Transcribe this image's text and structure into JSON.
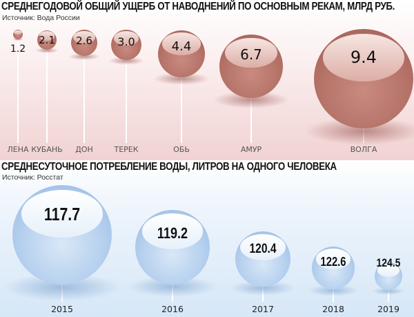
{
  "top_chart": {
    "title": "СРЕДНЕГОДОВОЙ ОБЩИЙ УЩЕРБ ОТ НАВОДНЕНИЙ ПО ОСНОВНЫМ РЕКАМ, МЛРД РУБ.",
    "source": "Источник: Вода России",
    "items": [
      {
        "label": "ЛЕНА",
        "value": "1.2"
      },
      {
        "label": "КУБАНЬ",
        "value": "2.1"
      },
      {
        "label": "ДОН",
        "value": "2.6"
      },
      {
        "label": "ТЕРЕК",
        "value": "3.0"
      },
      {
        "label": "ОБЬ",
        "value": "4.4"
      },
      {
        "label": "АМУР",
        "value": "6.7"
      },
      {
        "label": "ВОЛГА",
        "value": "9.4"
      }
    ]
  },
  "bottom_chart": {
    "title": "СРЕДНЕСУТОЧНОЕ ПОТРЕБЛЕНИЕ ВОДЫ, ЛИТРОВ НА ОДНОГО ЧЕЛОВЕКА",
    "source": "Источник: Росстат",
    "items": [
      {
        "label": "2015",
        "value": "117.7"
      },
      {
        "label": "2016",
        "value": "119.2"
      },
      {
        "label": "2017",
        "value": "120.4"
      },
      {
        "label": "2018",
        "value": "122.6"
      },
      {
        "label": "2019",
        "value": "124.5"
      }
    ]
  },
  "colors": {
    "top_sphere": "#b57368",
    "top_background": "#f1d2d2",
    "bottom_sphere": "#b4cfee",
    "bottom_background": "#d6e7f7"
  },
  "chart_data": [
    {
      "type": "bubble",
      "title": "СРЕДНЕГОДОВОЙ ОБЩИЙ УЩЕРБ ОТ НАВОДНЕНИЙ ПО ОСНОВНЫМ РЕКАМ, МЛРД РУБ.",
      "subtitle": "Источник: Вода России",
      "categories": [
        "ЛЕНА",
        "КУБАНЬ",
        "ДОН",
        "ТЕРЕК",
        "ОБЬ",
        "АМУР",
        "ВОЛГА"
      ],
      "values": [
        1.2,
        2.1,
        2.6,
        3.0,
        4.4,
        6.7,
        9.4
      ],
      "xlabel": "",
      "ylabel": "млрд руб.",
      "grid": false,
      "legend": "none"
    },
    {
      "type": "bubble",
      "title": "СРЕДНЕСУТОЧНОЕ ПОТРЕБЛЕНИЕ ВОДЫ, ЛИТРОВ НА ОДНОГО ЧЕЛОВЕКА",
      "subtitle": "Источник: Росстат",
      "categories": [
        "2015",
        "2016",
        "2017",
        "2018",
        "2019"
      ],
      "values": [
        117.7,
        119.2,
        120.4,
        122.6,
        124.5
      ],
      "xlabel": "",
      "ylabel": "литров",
      "grid": false,
      "legend": "none"
    }
  ]
}
